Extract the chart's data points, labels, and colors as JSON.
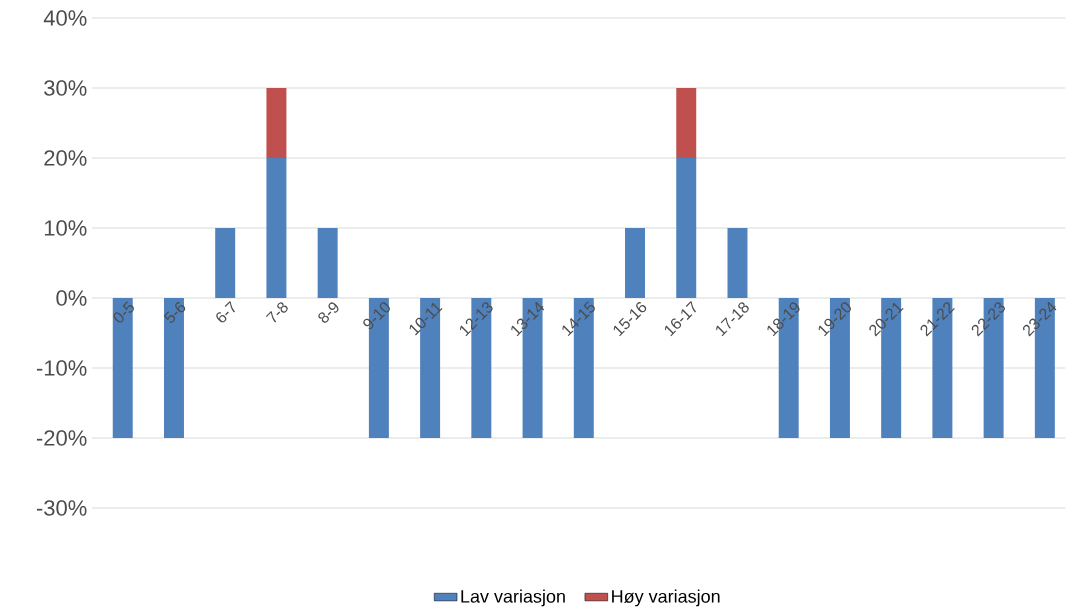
{
  "chart_data": {
    "type": "bar",
    "stacked": true,
    "categories": [
      "0-5",
      "5-6",
      "6-7",
      "7-8",
      "8-9",
      "9-10",
      "10-11",
      "12-13",
      "13-14",
      "14-15",
      "15-16",
      "16-17",
      "17-18",
      "18-19",
      "19-20",
      "20-21",
      "21-22",
      "22-23",
      "23-24"
    ],
    "series": [
      {
        "name": "Lav variasjon",
        "color": "#4f81bd",
        "values": [
          -20,
          -20,
          10,
          20,
          10,
          -20,
          -20,
          -20,
          -20,
          -20,
          10,
          20,
          10,
          -20,
          -20,
          -20,
          -20,
          -20,
          -20
        ]
      },
      {
        "name": "Høy variasjon",
        "color": "#c0504d",
        "values": [
          null,
          null,
          null,
          10,
          null,
          null,
          null,
          null,
          null,
          null,
          null,
          10,
          null,
          null,
          null,
          null,
          null,
          null,
          null
        ]
      }
    ],
    "ylim": [
      -30,
      40
    ],
    "yticks": [
      {
        "value": -30,
        "label": "-30%"
      },
      {
        "value": -20,
        "label": "-20%"
      },
      {
        "value": -10,
        "label": "-10%"
      },
      {
        "value": 0,
        "label": "0%"
      },
      {
        "value": 10,
        "label": "10%"
      },
      {
        "value": 20,
        "label": "20%"
      },
      {
        "value": 30,
        "label": "30%"
      },
      {
        "value": 40,
        "label": "40%"
      }
    ],
    "grid": "y",
    "legend": "bottom"
  }
}
